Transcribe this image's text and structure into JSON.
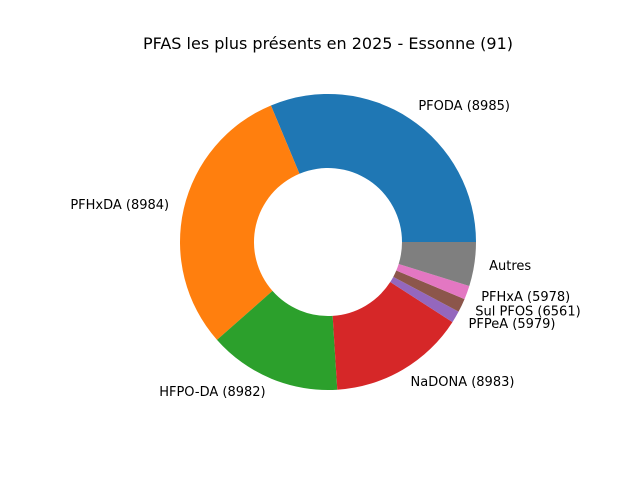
{
  "chart_data": {
    "type": "pie",
    "style": "donut",
    "title": "PFAS les plus présents en 2025 - Essonne (91)",
    "start_angle_deg": 0,
    "direction": "counterclockwise",
    "slices": [
      {
        "label": "PFODA (8985)",
        "value": 31.3,
        "color": "#1f77b4"
      },
      {
        "label": "PFHxDA (8984)",
        "value": 30.2,
        "color": "#ff7f0e"
      },
      {
        "label": "HFPO-DA (8982)",
        "value": 14.5,
        "color": "#2ca02c"
      },
      {
        "label": "NaDONA (8983)",
        "value": 14.9,
        "color": "#d62728"
      },
      {
        "label": "PFPeA (5979)",
        "value": 1.3,
        "color": "#9467bd"
      },
      {
        "label": "Sul PFOS (6561)",
        "value": 1.5,
        "color": "#8c564b"
      },
      {
        "label": "PFHxA (5978)",
        "value": 1.5,
        "color": "#e377c2"
      },
      {
        "label": "Autres",
        "value": 4.8,
        "color": "#7f7f7f"
      }
    ]
  }
}
